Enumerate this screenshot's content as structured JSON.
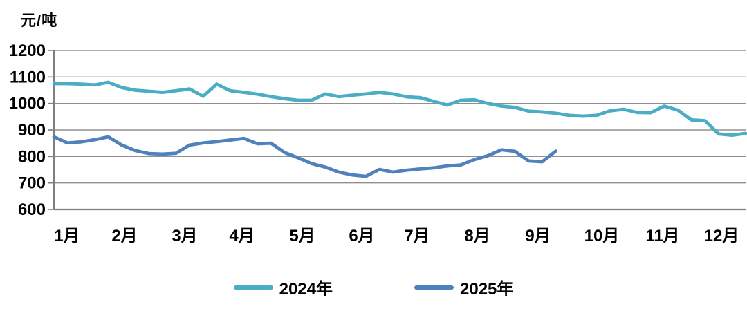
{
  "chart_data": {
    "type": "line",
    "title": "",
    "ylabel": "元/吨",
    "xlabel": "",
    "ylim": [
      600,
      1200
    ],
    "y_ticks": [
      1200,
      1100,
      1000,
      900,
      800,
      700,
      600
    ],
    "x_tick_labels": [
      "1月",
      "2月",
      "3月",
      "4月",
      "5月",
      "6月",
      "7月",
      "8月",
      "9月",
      "10月",
      "11月",
      "12月"
    ],
    "grid": "horizontal",
    "legend_position": "bottom-center",
    "x_unit": "weekly points across months",
    "series": [
      {
        "name": "2024年",
        "color": "#4BACC6",
        "values": [
          1075,
          1075,
          1073,
          1070,
          1080,
          1060,
          1050,
          1046,
          1042,
          1048,
          1055,
          1027,
          1073,
          1048,
          1042,
          1035,
          1026,
          1018,
          1012,
          1012,
          1036,
          1026,
          1031,
          1036,
          1042,
          1036,
          1025,
          1022,
          1008,
          994,
          1012,
          1014,
          1000,
          990,
          985,
          971,
          968,
          963,
          955,
          952,
          955,
          972,
          978,
          966,
          965,
          990,
          975,
          938,
          935,
          885,
          880,
          887
        ]
      },
      {
        "name": "2025年",
        "color": "#4F81BD",
        "values": [
          874,
          851,
          855,
          863,
          874,
          843,
          822,
          811,
          809,
          812,
          843,
          851,
          856,
          862,
          868,
          848,
          850,
          815,
          795,
          773,
          760,
          741,
          730,
          725,
          751,
          741,
          748,
          753,
          757,
          764,
          768,
          788,
          803,
          825,
          819,
          783,
          780,
          820
        ]
      }
    ]
  },
  "colors": {
    "gridline": "#909090",
    "axis": "#7F7F7F",
    "text": "#000000",
    "background": "#FFFFFF"
  }
}
